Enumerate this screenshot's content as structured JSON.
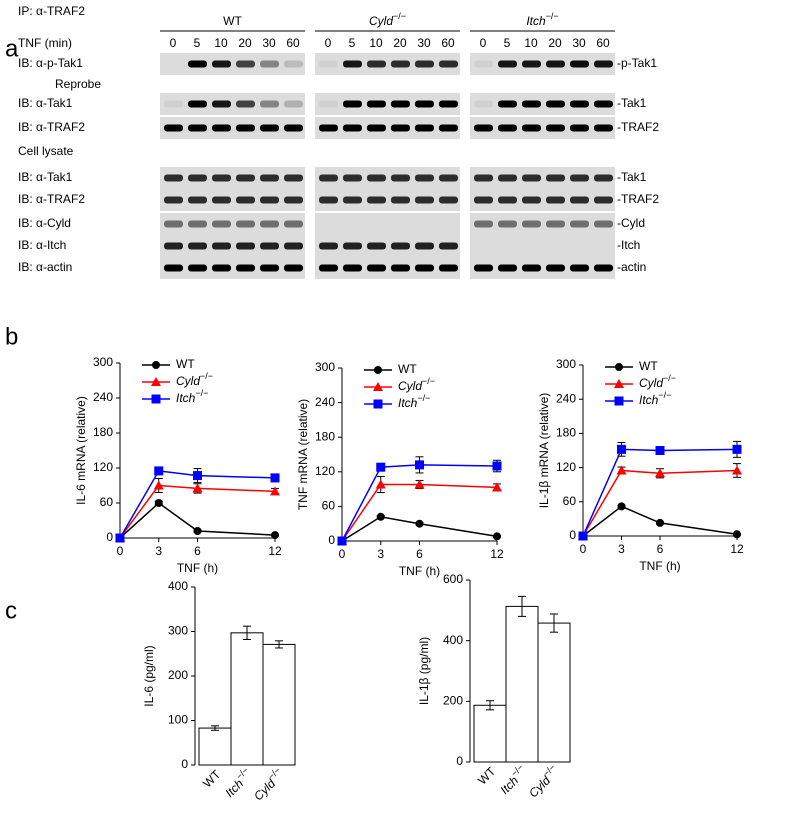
{
  "panels": [
    "a",
    "b",
    "c"
  ],
  "blot": {
    "ip_label": "IP: α-TRAF2",
    "time_label": "TNF (min)",
    "times": [
      0,
      5,
      10,
      20,
      30,
      60
    ],
    "groups": [
      {
        "name": "WT"
      },
      {
        "name": "Cyld",
        "sup": "−/−"
      },
      {
        "name": "Itch",
        "sup": "−/−"
      }
    ],
    "sections": [
      "Reprobe",
      "Cell lysate"
    ],
    "rows": [
      {
        "label": "IB: α-p-Tak1",
        "target": "-p-Tak1"
      },
      {
        "label": "IB: α-Tak1",
        "target": "-Tak1"
      },
      {
        "label": "IB: α-TRAF2",
        "target": "-TRAF2"
      },
      {
        "label": "IB: α-Tak1",
        "target": "-Tak1"
      },
      {
        "label": "IB: α-TRAF2",
        "target": "-TRAF2"
      },
      {
        "label": "IB: α-Cyld",
        "target": "-Cyld"
      },
      {
        "label": "IB: α-Itch",
        "target": "-Itch"
      },
      {
        "label": "IB: α-actin",
        "target": "-actin"
      }
    ]
  },
  "chart_data": [
    {
      "type": "line",
      "ylabel": "IL-6 mRNA (relative)",
      "xlabel": "TNF (h)",
      "x": [
        0,
        3,
        6,
        12
      ],
      "xlim": [
        0,
        12
      ],
      "xticks": [
        0,
        3,
        6,
        12
      ],
      "ylim": [
        0,
        300
      ],
      "yticks": [
        0,
        60,
        120,
        180,
        240,
        300
      ],
      "series": [
        {
          "name": "WT",
          "color": "#000000",
          "marker": "circle",
          "values": [
            0,
            60,
            12,
            5
          ],
          "errors": [
            0,
            3,
            2,
            1
          ]
        },
        {
          "name": "Cyld",
          "sup": "−/−",
          "color": "#ff0000",
          "marker": "triangle",
          "values": [
            0,
            90,
            85,
            80
          ],
          "errors": [
            0,
            12,
            8,
            5
          ]
        },
        {
          "name": "Itch",
          "sup": "−/−",
          "color": "#0000ff",
          "marker": "square",
          "values": [
            0,
            115,
            107,
            103
          ],
          "errors": [
            0,
            5,
            12,
            5
          ]
        }
      ]
    },
    {
      "type": "line",
      "ylabel": "TNF mRNA (relative)",
      "xlabel": "TNF (h)",
      "x": [
        0,
        3,
        6,
        12
      ],
      "xlim": [
        0,
        12
      ],
      "xticks": [
        0,
        3,
        6,
        12
      ],
      "ylim": [
        0,
        300
      ],
      "yticks": [
        0,
        60,
        120,
        180,
        240,
        300
      ],
      "series": [
        {
          "name": "WT",
          "color": "#000000",
          "marker": "circle",
          "values": [
            0,
            42,
            30,
            8
          ],
          "errors": [
            0,
            2,
            2,
            1
          ]
        },
        {
          "name": "Cyld",
          "sup": "−/−",
          "color": "#ff0000",
          "marker": "triangle",
          "values": [
            0,
            98,
            98,
            93
          ],
          "errors": [
            0,
            14,
            7,
            6
          ]
        },
        {
          "name": "Itch",
          "sup": "−/−",
          "color": "#0000ff",
          "marker": "square",
          "values": [
            0,
            128,
            132,
            130
          ],
          "errors": [
            0,
            5,
            14,
            10
          ]
        }
      ]
    },
    {
      "type": "line",
      "ylabel": "IL-1β mRNA (relative)",
      "xlabel": "TNF (h)",
      "x": [
        0,
        3,
        6,
        12
      ],
      "xlim": [
        0,
        12
      ],
      "xticks": [
        0,
        3,
        6,
        12
      ],
      "ylim": [
        0,
        300
      ],
      "yticks": [
        0,
        60,
        120,
        180,
        240,
        300
      ],
      "series": [
        {
          "name": "WT",
          "color": "#000000",
          "marker": "circle",
          "values": [
            0,
            52,
            23,
            3
          ],
          "errors": [
            0,
            2,
            2,
            1
          ]
        },
        {
          "name": "Cyld",
          "sup": "−/−",
          "color": "#ff0000",
          "marker": "triangle",
          "values": [
            0,
            115,
            110,
            115
          ],
          "errors": [
            0,
            6,
            8,
            12
          ]
        },
        {
          "name": "Itch",
          "sup": "−/−",
          "color": "#0000ff",
          "marker": "square",
          "values": [
            0,
            152,
            150,
            152
          ],
          "errors": [
            0,
            12,
            6,
            14
          ]
        }
      ]
    },
    {
      "type": "bar",
      "ylabel": "IL-6 (pg/ml)",
      "categories": [
        "WT",
        "Itch",
        "Cyld"
      ],
      "category_sups": [
        null,
        "−/−",
        "−/−"
      ],
      "values": [
        83,
        297,
        271
      ],
      "errors": [
        5,
        15,
        8
      ],
      "color": "#ffffff",
      "ylim": [
        0,
        400
      ],
      "yticks": [
        0,
        100,
        200,
        300,
        400
      ]
    },
    {
      "type": "bar",
      "ylabel": "IL-1β (pg/ml)",
      "categories": [
        "WT",
        "Itch",
        "Cyld"
      ],
      "category_sups": [
        null,
        "−/−",
        "−/−"
      ],
      "values": [
        187,
        513,
        458
      ],
      "errors": [
        15,
        33,
        30
      ],
      "color": "#ffffff",
      "ylim": [
        0,
        600
      ],
      "yticks": [
        0,
        200,
        400,
        600
      ]
    }
  ]
}
